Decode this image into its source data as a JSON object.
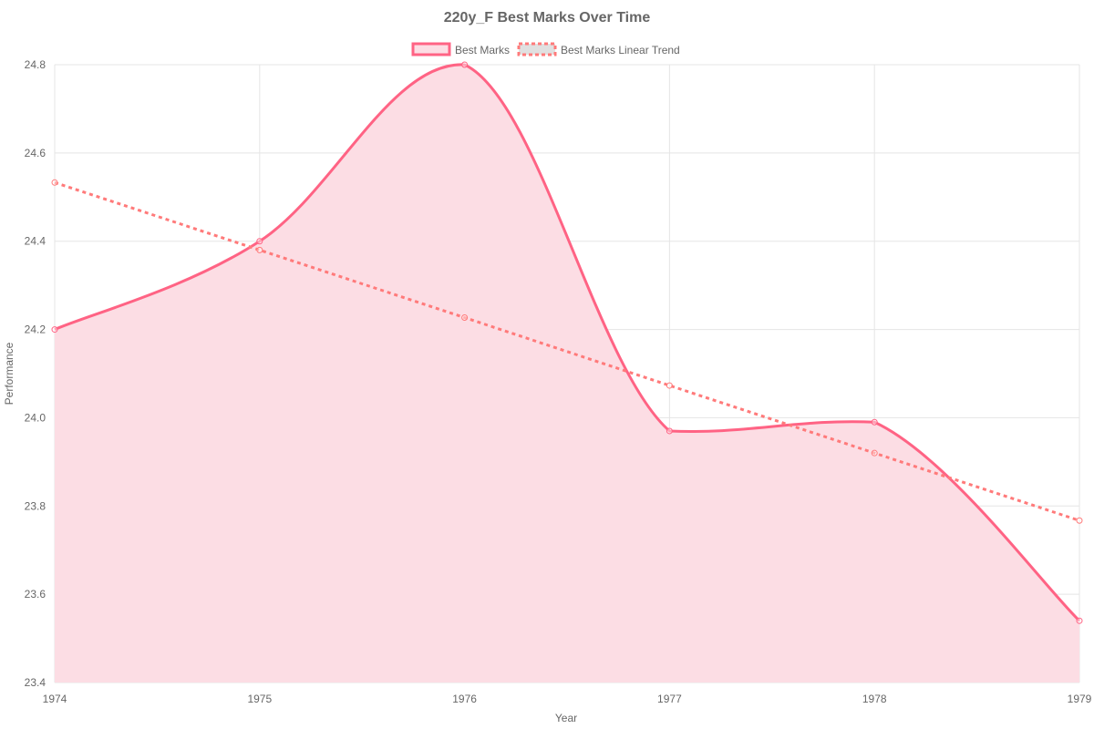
{
  "chart_data": {
    "type": "line",
    "title": "220y_F Best Marks Over Time",
    "xlabel": "Year",
    "ylabel": "Performance",
    "categories": [
      "1974",
      "1975",
      "1976",
      "1977",
      "1978",
      "1979"
    ],
    "ylim": [
      23.4,
      24.8
    ],
    "yticks": [
      "23.4",
      "23.6",
      "23.8",
      "24.0",
      "24.2",
      "24.4",
      "24.6",
      "24.8"
    ],
    "grid": true,
    "legend_position": "top",
    "series": [
      {
        "name": "Best Marks",
        "values": [
          24.2,
          24.4,
          24.8,
          23.97,
          23.99,
          23.54
        ],
        "style": "solid",
        "fill": true,
        "color": "#ff6384",
        "fill_color": "#fcdde4"
      },
      {
        "name": "Best Marks Linear Trend",
        "values": [
          24.533,
          24.38,
          24.227,
          24.073,
          23.92,
          23.767
        ],
        "style": "dashed",
        "fill": false,
        "color": "#ff7a7a"
      }
    ]
  }
}
